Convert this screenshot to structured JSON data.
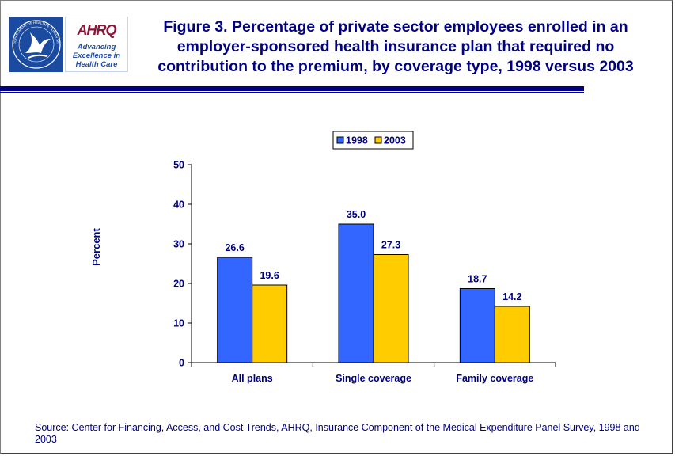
{
  "header": {
    "title": "Figure 3. Percentage of private sector employees enrolled in an employer-sponsored health insurance plan that required no contribution to the premium, by coverage type, 1998 versus 2003",
    "hhs_logo_text": "DEPARTMENT OF HEALTH & HUMAN SERVICES • USA",
    "ahrq_logo": {
      "name": "AHRQ",
      "tagline": "Advancing\nExcellence in\nHealth Care"
    }
  },
  "chart_data": {
    "type": "bar",
    "categories": [
      "All plans",
      "Single coverage",
      "Family coverage"
    ],
    "series": [
      {
        "name": "1998",
        "values": [
          26.6,
          35.0,
          18.7
        ],
        "color": "#3366ff"
      },
      {
        "name": "2003",
        "values": [
          19.6,
          27.3,
          14.2
        ],
        "color": "#ffcc00"
      }
    ],
    "value_labels": [
      [
        "26.6",
        "35.0",
        "18.7"
      ],
      [
        "19.6",
        "27.3",
        "14.2"
      ]
    ],
    "ylabel": "Percent",
    "xlabel": "",
    "ylim": [
      0,
      50
    ],
    "yticks": [
      0,
      10,
      20,
      30,
      40,
      50
    ],
    "legend_position": "top",
    "grid": false
  },
  "footer": {
    "source": "Source: Center for Financing, Access, and Cost Trends, AHRQ, Insurance Component of the Medical Expenditure Panel Survey, 1998 and 2003"
  }
}
